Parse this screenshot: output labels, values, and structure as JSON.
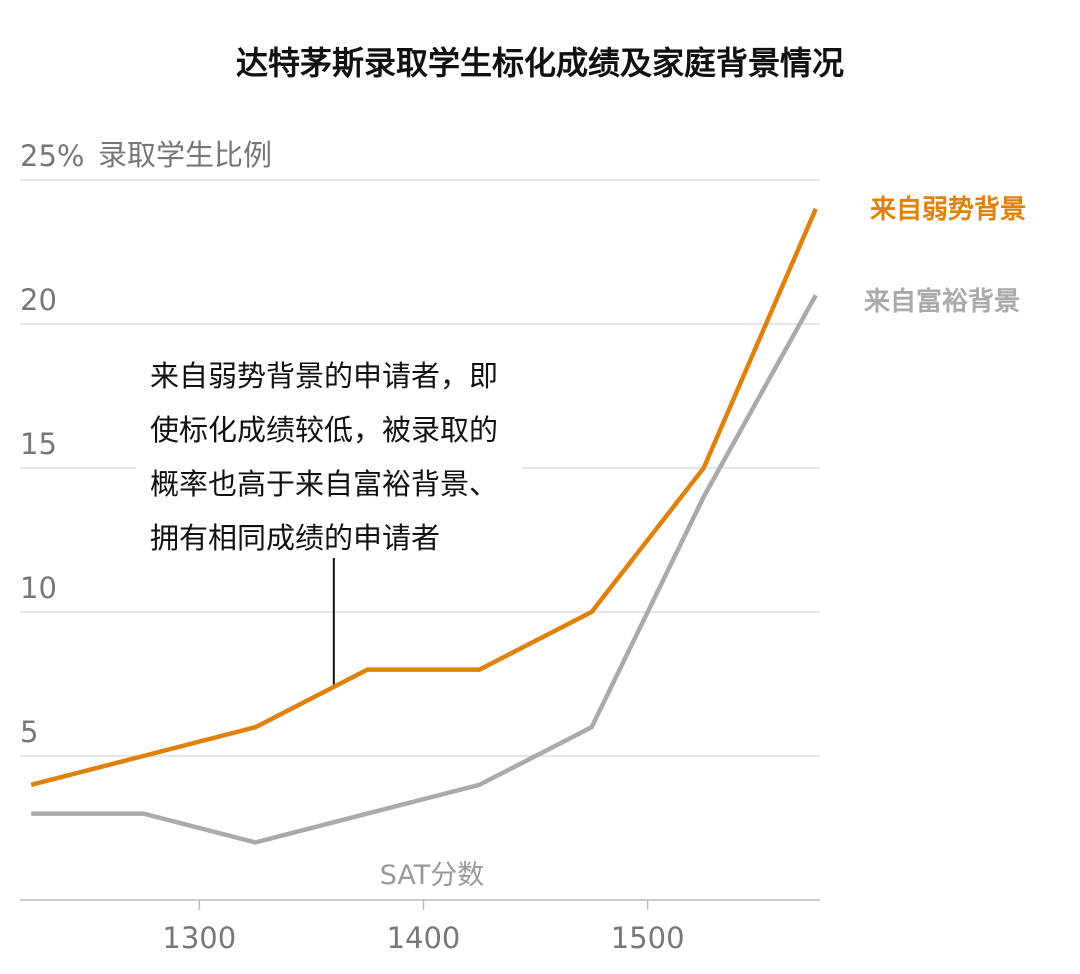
{
  "chart_data": {
    "type": "line",
    "title": "达特茅斯录取学生标化成绩及家庭背景情况",
    "ylabel": "录取学生比例",
    "xlabel": "SAT分数",
    "ylim": [
      0,
      25
    ],
    "xlim": [
      1220,
      1575
    ],
    "yticks": [
      {
        "value": 25,
        "label": "25%"
      },
      {
        "value": 20,
        "label": "20"
      },
      {
        "value": 15,
        "label": "15"
      },
      {
        "value": 10,
        "label": "10"
      },
      {
        "value": 5,
        "label": "5"
      }
    ],
    "xticks": [
      {
        "value": 1300,
        "label": "1300"
      },
      {
        "value": 1400,
        "label": "1400"
      },
      {
        "value": 1500,
        "label": "1500"
      }
    ],
    "grid": true,
    "series": [
      {
        "name": "来自弱势背景",
        "color": "#E0810C",
        "x": [
          1225,
          1275,
          1325,
          1375,
          1425,
          1475,
          1525,
          1575
        ],
        "y": [
          4,
          5,
          6,
          8,
          8,
          10,
          15,
          24
        ]
      },
      {
        "name": "来自富裕背景",
        "color": "#AAAAAA",
        "x": [
          1225,
          1275,
          1325,
          1375,
          1425,
          1475,
          1525,
          1575
        ],
        "y": [
          3,
          3,
          2,
          3,
          4,
          6,
          14,
          21
        ]
      }
    ],
    "annotation": {
      "lines": [
        "来自弱势背景的申请者，即",
        "使标化成绩较低，被录取的",
        "概率也高于来自富裕背景、",
        "拥有相同成绩的申请者"
      ],
      "point": {
        "x": 1360,
        "y": 7.4
      }
    }
  }
}
